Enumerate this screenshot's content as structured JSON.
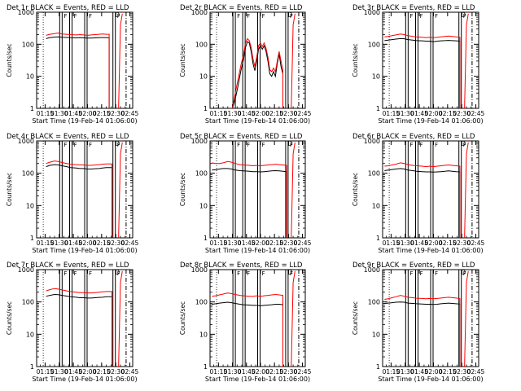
{
  "figure": {
    "xlabel": "Start Time (19-Feb-14 01:06:00)",
    "ylabel": "Counts/sec",
    "colors": {
      "events": "#000000",
      "lld": "#ff0000",
      "axes": "#000000",
      "background": "#ffffff"
    }
  },
  "chart_data": [
    {
      "type": "line",
      "title": "Det 1r BLACK = Events, RED = LLD",
      "x_ticks": [
        "01:15",
        "01:30",
        "01:45",
        "02:00",
        "02:15",
        "02:30",
        "02:45"
      ],
      "x_tick_minutes": [
        15,
        30,
        45,
        60,
        75,
        90,
        105
      ],
      "y_scale": "log",
      "y_ticks": [
        1,
        10,
        100,
        1000
      ],
      "ylim": [
        1,
        1000
      ],
      "xlim": [
        6,
        108
      ],
      "x": [
        16,
        20,
        25,
        29,
        33,
        38,
        42,
        48,
        52,
        56,
        60,
        64,
        68,
        72,
        76,
        80,
        83
      ],
      "series": [
        {
          "role": "events",
          "values": [
            150,
            160,
            168,
            170,
            165,
            163,
            160,
            158,
            160,
            158,
            155,
            155,
            158,
            160,
            162,
            160,
            160
          ]
        },
        {
          "role": "lld",
          "values": [
            190,
            205,
            215,
            225,
            210,
            205,
            200,
            195,
            200,
            195,
            190,
            195,
            200,
            205,
            210,
            205,
            205
          ]
        }
      ],
      "events_drop_to": 1,
      "lld_drop_to": 1,
      "saa_markers": [
        {
          "label": "F",
          "x": 30.5
        },
        {
          "label": "F",
          "x": 41
        },
        {
          "label": "F",
          "x": 57
        },
        {
          "label": "F",
          "x": 87
        }
      ],
      "saa_exit_label": "D"
    },
    {
      "type": "line",
      "title": "Det 2r BLACK = Events, RED = LLD",
      "x_ticks": [
        "01:15",
        "01:30",
        "01:45",
        "02:00",
        "02:15",
        "02:30",
        "02:45"
      ],
      "x_tick_minutes": [
        15,
        30,
        45,
        60,
        75,
        90,
        105
      ],
      "y_scale": "log",
      "y_ticks": [
        1,
        10,
        100,
        1000
      ],
      "ylim": [
        1,
        1000
      ],
      "xlim": [
        6,
        108
      ],
      "x": [
        30,
        33,
        36,
        39,
        42,
        44,
        46,
        48,
        50,
        52,
        54,
        56,
        58,
        60,
        62,
        64,
        66,
        68,
        70,
        72,
        74,
        76,
        78,
        80,
        82,
        84
      ],
      "series": [
        {
          "role": "events",
          "values": [
            1,
            2,
            5,
            15,
            35,
            80,
            120,
            110,
            60,
            25,
            15,
            30,
            70,
            90,
            70,
            90,
            60,
            30,
            12,
            10,
            14,
            10,
            25,
            50,
            20,
            12
          ]
        },
        {
          "role": "lld",
          "values": [
            1,
            3,
            8,
            22,
            50,
            110,
            150,
            130,
            80,
            35,
            20,
            40,
            90,
            110,
            85,
            110,
            75,
            40,
            16,
            14,
            18,
            14,
            30,
            60,
            30,
            15
          ]
        }
      ],
      "events_drop_to": 1,
      "lld_drop_to": 1,
      "saa_markers": [
        {
          "label": "F",
          "x": 30.5
        },
        {
          "label": "F",
          "x": 41
        },
        {
          "label": "F",
          "x": 57
        },
        {
          "label": "F",
          "x": 87
        }
      ],
      "saa_exit_label": "D"
    },
    {
      "type": "line",
      "title": "Det 3r BLACK = Events, RED = LLD",
      "x_ticks": [
        "01:15",
        "01:30",
        "01:45",
        "02:00",
        "02:15",
        "02:30",
        "02:45"
      ],
      "x_tick_minutes": [
        15,
        30,
        45,
        60,
        75,
        90,
        105
      ],
      "y_scale": "log",
      "y_ticks": [
        1,
        10,
        100,
        1000
      ],
      "ylim": [
        1,
        1000
      ],
      "xlim": [
        6,
        108
      ],
      "x": [
        8,
        12,
        16,
        20,
        25,
        29,
        33,
        38,
        42,
        48,
        52,
        56,
        60,
        64,
        68,
        72,
        76,
        80,
        84,
        88
      ],
      "series": [
        {
          "role": "events",
          "values": [
            130,
            135,
            140,
            145,
            150,
            148,
            140,
            135,
            130,
            128,
            125,
            125,
            120,
            125,
            128,
            130,
            132,
            130,
            128,
            125
          ]
        },
        {
          "role": "lld",
          "values": [
            170,
            175,
            185,
            195,
            210,
            200,
            185,
            175,
            170,
            165,
            160,
            165,
            160,
            165,
            170,
            175,
            180,
            175,
            170,
            165
          ]
        }
      ],
      "events_drop_to": 1,
      "lld_drop_to": 1,
      "saa_markers": [
        {
          "label": "F",
          "x": 30.5
        },
        {
          "label": "F",
          "x": 41
        },
        {
          "label": "F",
          "x": 57
        },
        {
          "label": "F",
          "x": 87
        }
      ],
      "saa_exit_label": "D"
    },
    {
      "type": "line",
      "title": "Det 4r BLACK = Events, RED = LLD",
      "x_ticks": [
        "01:15",
        "01:30",
        "01:45",
        "02:00",
        "02:15",
        "02:30",
        "02:45"
      ],
      "x_tick_minutes": [
        15,
        30,
        45,
        60,
        75,
        90,
        105
      ],
      "y_scale": "log",
      "y_ticks": [
        1,
        10,
        100,
        1000
      ],
      "ylim": [
        1,
        1000
      ],
      "xlim": [
        6,
        108
      ],
      "x": [
        16,
        20,
        25,
        29,
        33,
        38,
        42,
        48,
        52,
        56,
        60,
        64,
        68,
        72,
        76,
        80,
        84,
        86
      ],
      "series": [
        {
          "role": "events",
          "values": [
            160,
            175,
            185,
            180,
            170,
            160,
            150,
            145,
            140,
            140,
            135,
            135,
            138,
            140,
            145,
            150,
            150,
            150
          ]
        },
        {
          "role": "lld",
          "values": [
            200,
            220,
            240,
            230,
            215,
            200,
            190,
            185,
            180,
            180,
            175,
            175,
            180,
            185,
            190,
            195,
            195,
            195
          ]
        }
      ],
      "events_drop_to": 1,
      "lld_drop_to": 1,
      "saa_markers": [
        {
          "label": "F",
          "x": 30.5
        },
        {
          "label": "F",
          "x": 41
        },
        {
          "label": "F",
          "x": 57
        },
        {
          "label": "F",
          "x": 87
        }
      ],
      "saa_exit_label": "D"
    },
    {
      "type": "line",
      "title": "Det 5r BLACK = Events, RED = LLD",
      "x_ticks": [
        "01:15",
        "01:30",
        "01:45",
        "02:00",
        "02:15",
        "02:30",
        "02:45"
      ],
      "x_tick_minutes": [
        15,
        30,
        45,
        60,
        75,
        90,
        105
      ],
      "y_scale": "log",
      "y_ticks": [
        1,
        10,
        100,
        1000
      ],
      "ylim": [
        1,
        1000
      ],
      "xlim": [
        6,
        108
      ],
      "x": [
        8,
        12,
        16,
        20,
        25,
        29,
        33,
        38,
        42,
        48,
        52,
        56,
        60,
        64,
        68,
        72,
        76,
        80,
        84,
        88
      ],
      "series": [
        {
          "role": "events",
          "values": [
            125,
            128,
            135,
            140,
            140,
            135,
            125,
            120,
            118,
            115,
            112,
            112,
            110,
            112,
            115,
            118,
            120,
            118,
            115,
            112
          ]
        },
        {
          "role": "lld",
          "values": [
            210,
            200,
            200,
            210,
            230,
            220,
            200,
            185,
            180,
            175,
            170,
            175,
            170,
            175,
            180,
            185,
            190,
            185,
            180,
            175
          ]
        }
      ],
      "events_drop_to": 1,
      "lld_drop_to": 1,
      "saa_markers": [
        {
          "label": "F",
          "x": 30.5
        },
        {
          "label": "F",
          "x": 41
        },
        {
          "label": "F",
          "x": 57
        },
        {
          "label": "F",
          "x": 87
        }
      ],
      "saa_exit_label": "D"
    },
    {
      "type": "line",
      "title": "Det 6r BLACK = Events, RED = LLD",
      "x_ticks": [
        "01:15",
        "01:30",
        "01:45",
        "02:00",
        "02:15",
        "02:30",
        "02:45"
      ],
      "x_tick_minutes": [
        15,
        30,
        45,
        60,
        75,
        90,
        105
      ],
      "y_scale": "log",
      "y_ticks": [
        1,
        10,
        100,
        1000
      ],
      "ylim": [
        1,
        1000
      ],
      "xlim": [
        6,
        108
      ],
      "x": [
        8,
        12,
        16,
        20,
        25,
        29,
        33,
        38,
        42,
        48,
        52,
        56,
        60,
        64,
        68,
        72,
        76,
        80,
        84,
        88
      ],
      "series": [
        {
          "role": "events",
          "values": [
            120,
            125,
            130,
            135,
            140,
            135,
            125,
            120,
            115,
            112,
            110,
            110,
            108,
            110,
            112,
            115,
            118,
            115,
            112,
            110
          ]
        },
        {
          "role": "lld",
          "values": [
            165,
            170,
            180,
            190,
            210,
            200,
            185,
            175,
            170,
            165,
            160,
            165,
            160,
            165,
            170,
            175,
            180,
            175,
            170,
            165
          ]
        }
      ],
      "events_drop_to": 1,
      "lld_drop_to": 1,
      "saa_markers": [
        {
          "label": "F",
          "x": 30.5
        },
        {
          "label": "F",
          "x": 41
        },
        {
          "label": "F",
          "x": 57
        },
        {
          "label": "F",
          "x": 87
        }
      ],
      "saa_exit_label": "D"
    },
    {
      "type": "line",
      "title": "Det 7r BLACK = Events, RED = LLD",
      "x_ticks": [
        "01:15",
        "01:30",
        "01:45",
        "02:00",
        "02:15",
        "02:30",
        "02:45"
      ],
      "x_tick_minutes": [
        15,
        30,
        45,
        60,
        75,
        90,
        105
      ],
      "y_scale": "log",
      "y_ticks": [
        1,
        10,
        100,
        1000
      ],
      "ylim": [
        1,
        1000
      ],
      "xlim": [
        6,
        108
      ],
      "x": [
        16,
        20,
        25,
        29,
        33,
        38,
        42,
        48,
        52,
        56,
        60,
        64,
        68,
        72,
        76,
        80,
        84,
        86
      ],
      "series": [
        {
          "role": "events",
          "values": [
            150,
            160,
            170,
            168,
            160,
            152,
            145,
            140,
            135,
            135,
            132,
            132,
            135,
            138,
            140,
            145,
            145,
            145
          ]
        },
        {
          "role": "lld",
          "values": [
            220,
            240,
            260,
            250,
            235,
            220,
            210,
            200,
            195,
            195,
            190,
            190,
            195,
            200,
            205,
            210,
            210,
            210
          ]
        }
      ],
      "events_drop_to": 1,
      "lld_drop_to": 1,
      "saa_markers": [
        {
          "label": "F",
          "x": 30.5
        },
        {
          "label": "F",
          "x": 41
        },
        {
          "label": "F",
          "x": 57
        },
        {
          "label": "F",
          "x": 87
        }
      ],
      "saa_exit_label": "D"
    },
    {
      "type": "line",
      "title": "Det 8r BLACK = Events, RED = LLD",
      "x_ticks": [
        "01:15",
        "01:30",
        "01:45",
        "02:00",
        "02:15",
        "02:30",
        "02:45"
      ],
      "x_tick_minutes": [
        15,
        30,
        45,
        60,
        75,
        90,
        105
      ],
      "y_scale": "log",
      "y_ticks": [
        1,
        10,
        100,
        1000
      ],
      "ylim": [
        1,
        1000
      ],
      "xlim": [
        6,
        108
      ],
      "x": [
        8,
        12,
        16,
        20,
        25,
        29,
        33,
        38,
        42,
        48,
        52,
        56,
        60,
        64,
        68,
        72,
        76,
        80,
        84
      ],
      "series": [
        {
          "role": "events",
          "values": [
            85,
            88,
            92,
            95,
            98,
            95,
            90,
            85,
            82,
            80,
            78,
            78,
            76,
            78,
            80,
            82,
            85,
            85,
            82
          ]
        },
        {
          "role": "lld",
          "values": [
            150,
            155,
            165,
            175,
            190,
            180,
            170,
            160,
            155,
            150,
            150,
            155,
            150,
            155,
            160,
            165,
            170,
            165,
            160
          ]
        }
      ],
      "events_drop_to": 1,
      "lld_drop_to": 1,
      "saa_markers": [
        {
          "label": "F",
          "x": 30.5
        },
        {
          "label": "F",
          "x": 41
        },
        {
          "label": "F",
          "x": 57
        },
        {
          "label": "F",
          "x": 87
        }
      ],
      "saa_exit_label": "D"
    },
    {
      "type": "line",
      "title": "Det 9r BLACK = Events, RED = LLD",
      "x_ticks": [
        "01:15",
        "01:30",
        "01:45",
        "02:00",
        "02:15",
        "02:30",
        "02:45"
      ],
      "x_tick_minutes": [
        15,
        30,
        45,
        60,
        75,
        90,
        105
      ],
      "y_scale": "log",
      "y_ticks": [
        1,
        10,
        100,
        1000
      ],
      "ylim": [
        1,
        1000
      ],
      "xlim": [
        6,
        108
      ],
      "x": [
        8,
        12,
        16,
        20,
        25,
        29,
        33,
        38,
        42,
        48,
        52,
        56,
        60,
        64,
        68,
        72,
        76,
        80,
        84,
        88
      ],
      "series": [
        {
          "role": "events",
          "values": [
            90,
            92,
            95,
            98,
            100,
            98,
            92,
            90,
            88,
            86,
            85,
            85,
            84,
            85,
            88,
            90,
            92,
            90,
            88,
            86
          ]
        },
        {
          "role": "lld",
          "values": [
            120,
            125,
            135,
            145,
            160,
            150,
            140,
            135,
            130,
            128,
            125,
            128,
            125,
            128,
            132,
            136,
            140,
            136,
            132,
            128
          ]
        }
      ],
      "events_drop_to": 1,
      "lld_drop_to": 1,
      "saa_markers": [
        {
          "label": "F",
          "x": 30.5
        },
        {
          "label": "F",
          "x": 41
        },
        {
          "label": "F",
          "x": 57
        },
        {
          "label": "F",
          "x": 87
        }
      ],
      "saa_exit_label": "D"
    }
  ]
}
